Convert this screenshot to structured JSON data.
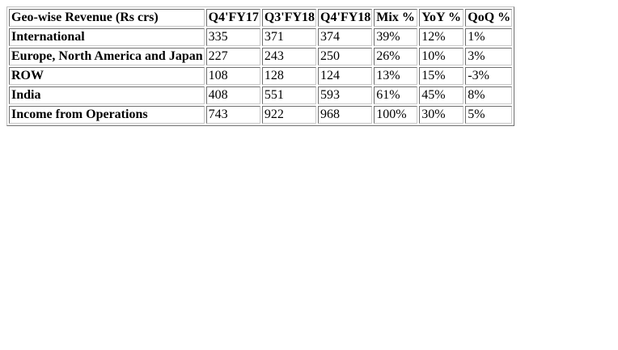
{
  "table": {
    "header": [
      "Geo-wise Revenue (Rs crs)",
      "Q4'FY17",
      "Q3'FY18",
      "Q4'FY18",
      "Mix %",
      "YoY %",
      "QoQ %"
    ],
    "rows": [
      [
        "International",
        "335",
        "371",
        "374",
        "39%",
        "12%",
        "1%"
      ],
      [
        "Europe, North America and Japan",
        "227",
        "243",
        "250",
        "26%",
        "10%",
        "3%"
      ],
      [
        "ROW",
        "108",
        "128",
        "124",
        "13%",
        "15%",
        "-3%"
      ],
      [
        "India",
        "408",
        "551",
        "593",
        "61%",
        "45%",
        "8%"
      ],
      [
        "Income from Operations",
        "743",
        "922",
        "968",
        "100%",
        "30%",
        "5%"
      ]
    ]
  }
}
